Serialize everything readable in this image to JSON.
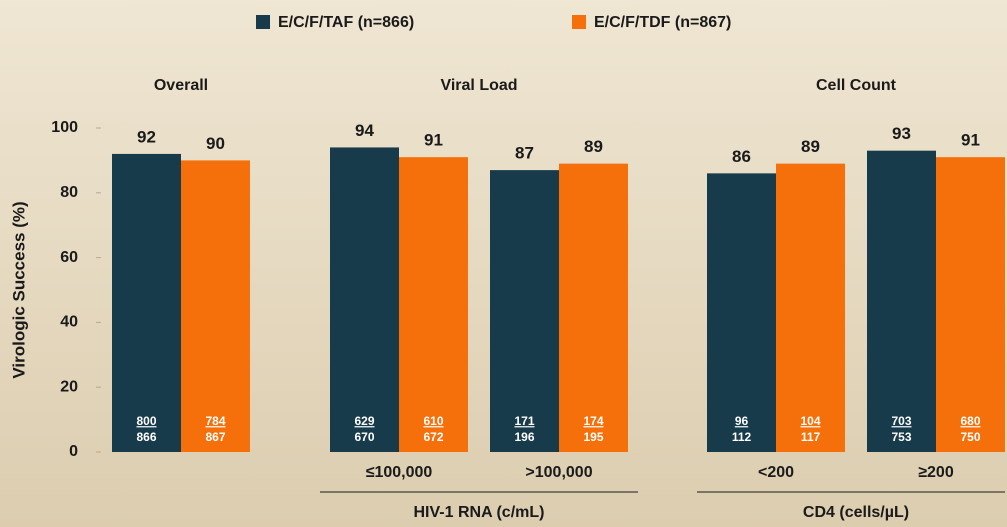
{
  "chart_data": {
    "type": "bar",
    "ylabel": "Virologic Success (%)",
    "ylim": [
      0,
      100
    ],
    "yticks": [
      0,
      20,
      40,
      60,
      80,
      100
    ],
    "series": [
      {
        "name": "E/C/F/TAF (n=866)",
        "color": "#173b4a"
      },
      {
        "name": "E/C/F/TDF (n=867)",
        "color": "#f5700a"
      }
    ],
    "panels": [
      {
        "title": "Overall",
        "categories": [
          null
        ],
        "series": [
          {
            "values": [
              92
            ],
            "numerators": [
              800
            ],
            "denominators": [
              866
            ]
          },
          {
            "values": [
              90
            ],
            "numerators": [
              784
            ],
            "denominators": [
              867
            ]
          }
        ]
      },
      {
        "title": "Viral Load",
        "xlabel": "HIV-1 RNA (c/mL)",
        "categories": [
          "≤100,000",
          ">100,000"
        ],
        "series": [
          {
            "values": [
              94,
              87
            ],
            "numerators": [
              629,
              171
            ],
            "denominators": [
              670,
              196
            ]
          },
          {
            "values": [
              91,
              89
            ],
            "numerators": [
              610,
              174
            ],
            "denominators": [
              672,
              195
            ]
          }
        ]
      },
      {
        "title": "Cell Count",
        "xlabel": "CD4 (cells/µL)",
        "categories": [
          "<200",
          "≥200"
        ],
        "series": [
          {
            "values": [
              86,
              93
            ],
            "numerators": [
              96,
              703
            ],
            "denominators": [
              112,
              753
            ]
          },
          {
            "values": [
              89,
              91
            ],
            "numerators": [
              104,
              680
            ],
            "denominators": [
              117,
              750
            ]
          }
        ]
      }
    ]
  }
}
